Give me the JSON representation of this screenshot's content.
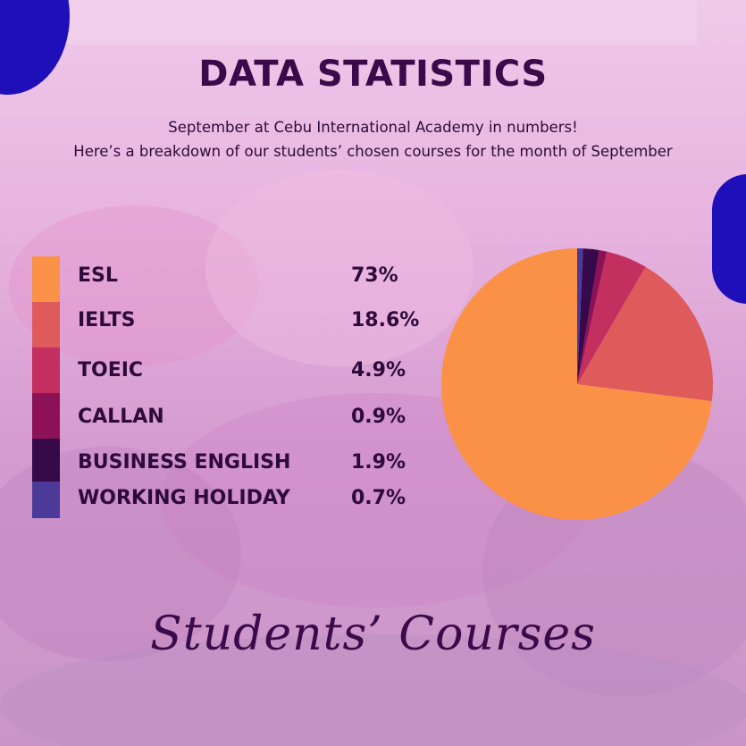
{
  "header": {
    "title": "DATA STATISTICS",
    "subtitle_line1": "September at Cebu International Academy in numbers!",
    "subtitle_line2": "Here’s a breakdown of our students’ chosen courses for the month of September"
  },
  "footer": {
    "caption": "Students’ Courses"
  },
  "colors": {
    "title": "#3a0a4a",
    "accent_blob": "#1f0fb8"
  },
  "chart_data": {
    "type": "pie",
    "unit": "%",
    "categories": [
      "ESL",
      "IELTS",
      "TOEIC",
      "CALLAN",
      "BUSINESS ENGLISH",
      "WORKING HOLIDAY"
    ],
    "values": [
      73,
      18.6,
      4.9,
      0.9,
      1.9,
      0.7
    ],
    "labels": [
      "73%",
      "18.6%",
      "4.9%",
      "0.9%",
      "1.9%",
      "0.7%"
    ],
    "colors": [
      "#fb9146",
      "#de5a5b",
      "#c32f5e",
      "#8d1157",
      "#360a4a",
      "#4b3a9a"
    ],
    "start_angle_deg": 0,
    "direction": "counterclockwise",
    "legend_position": "left"
  }
}
